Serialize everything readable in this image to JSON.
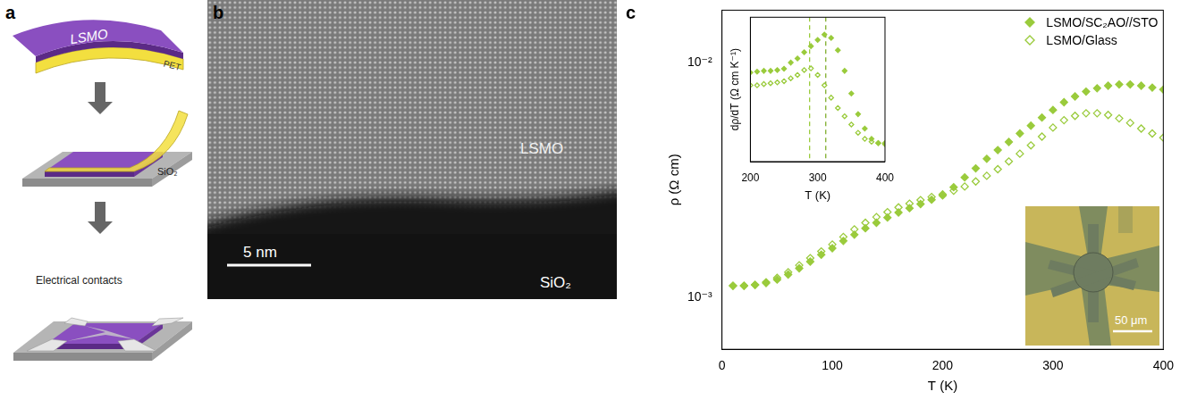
{
  "panels": {
    "a": {
      "letter": "a",
      "labels": {
        "film": "LSMO",
        "carrier": "PET",
        "substrate": "SiO₂",
        "contacts": "Electrical contacts"
      }
    },
    "b": {
      "letter": "b",
      "labels": {
        "film": "LSMO",
        "substrate": "SiO₂"
      },
      "scale_bar": "5 nm"
    },
    "c": {
      "letter": "c",
      "image_inset": {
        "scale_bar": "50 μm"
      }
    }
  },
  "chart_data": [
    {
      "type": "scatter",
      "x_label": "T (K)",
      "y_label": "ρ (Ω cm)",
      "log": "y",
      "grid": false,
      "legend": "top right",
      "xlim": [
        0,
        400
      ],
      "xticks": [
        0,
        100,
        200,
        300,
        400
      ],
      "ylim": [
        0.00063,
        0.0168
      ],
      "yticks": [
        {
          "value": 0.001,
          "label": "10⁻³"
        },
        {
          "value": 0.01,
          "label": "10⁻²"
        }
      ],
      "x": [
        10,
        20,
        30,
        40,
        50,
        60,
        70,
        80,
        90,
        100,
        110,
        120,
        130,
        140,
        150,
        160,
        170,
        180,
        190,
        200,
        210,
        220,
        230,
        240,
        250,
        260,
        270,
        280,
        290,
        300,
        310,
        320,
        330,
        340,
        350,
        360,
        370,
        380,
        390,
        400
      ],
      "series": [
        {
          "name": "LSMO/SC₂AO//STO",
          "color": "#9acb3c",
          "marker": "diamond",
          "values": [
            0.00112,
            0.00112,
            0.00113,
            0.00115,
            0.00119,
            0.00125,
            0.00133,
            0.00142,
            0.00152,
            0.00162,
            0.00174,
            0.00185,
            0.00197,
            0.00208,
            0.00219,
            0.0023,
            0.0024,
            0.0025,
            0.00261,
            0.00272,
            0.00295,
            0.00325,
            0.00355,
            0.0039,
            0.00425,
            0.0046,
            0.005,
            0.0054,
            0.00585,
            0.0063,
            0.0068,
            0.0072,
            0.00755,
            0.0078,
            0.008,
            0.0081,
            0.0081,
            0.008,
            0.00785,
            0.0077
          ]
        },
        {
          "name": "LSMO/Glass",
          "color": "#9acb3c",
          "marker": "open diamond",
          "values": [
            0.00112,
            0.00112,
            0.00113,
            0.00116,
            0.00121,
            0.00128,
            0.00137,
            0.00147,
            0.00157,
            0.00168,
            0.00181,
            0.00195,
            0.00208,
            0.0022,
            0.00231,
            0.00242,
            0.00251,
            0.0026,
            0.00268,
            0.00275,
            0.00285,
            0.00297,
            0.00312,
            0.0033,
            0.00352,
            0.0038,
            0.0041,
            0.00445,
            0.00485,
            0.0053,
            0.0057,
            0.00595,
            0.0061,
            0.0061,
            0.006,
            0.0058,
            0.00555,
            0.00525,
            0.005,
            0.0048
          ]
        }
      ]
    },
    {
      "type": "scatter",
      "x_label": "T (K)",
      "y_label": "dρ/dT (Ω cm K⁻¹)",
      "grid": false,
      "tick_labels": "x",
      "xlim": [
        200,
        400
      ],
      "xticks": [
        200,
        300,
        400
      ],
      "ylim": [
        1.5e-05,
        5e-05
      ],
      "yticks": [],
      "x": [
        200,
        210,
        220,
        230,
        240,
        250,
        260,
        270,
        280,
        290,
        300,
        310,
        320,
        330,
        340,
        350,
        360,
        370,
        380,
        390,
        400
      ],
      "series": [
        {
          "name": "LSMO/SC₂AO//STO",
          "color": "#9acb3c",
          "marker": "diamond",
          "values": [
            3.66e-05,
            3.68e-05,
            3.7e-05,
            3.7e-05,
            3.72e-05,
            3.75e-05,
            3.9e-05,
            4e-05,
            4.15e-05,
            4.3e-05,
            4.45e-05,
            4.58e-05,
            4.5e-05,
            4.2e-05,
            3.7e-05,
            3.15e-05,
            2.65e-05,
            2.3e-05,
            2.05e-05,
            1.95e-05,
            1.92e-05
          ]
        },
        {
          "name": "LSMO/Glass",
          "color": "#9acb3c",
          "marker": "open diamond",
          "values": [
            3.35e-05,
            3.35e-05,
            3.38e-05,
            3.4e-05,
            3.42e-05,
            3.45e-05,
            3.52e-05,
            3.6e-05,
            3.72e-05,
            3.76e-05,
            3.6e-05,
            3.35e-05,
            3.05e-05,
            2.8e-05,
            2.6e-05,
            2.4e-05,
            2.2e-05,
            2.05e-05,
            1.98e-05,
            1.95e-05,
            1.95e-05
          ]
        }
      ],
      "vlines": [
        {
          "x": 288,
          "color": "#9acb3c",
          "line_style": "dashed"
        },
        {
          "x": 312,
          "color": "#7fae2c",
          "line_style": "dashed"
        }
      ]
    }
  ]
}
